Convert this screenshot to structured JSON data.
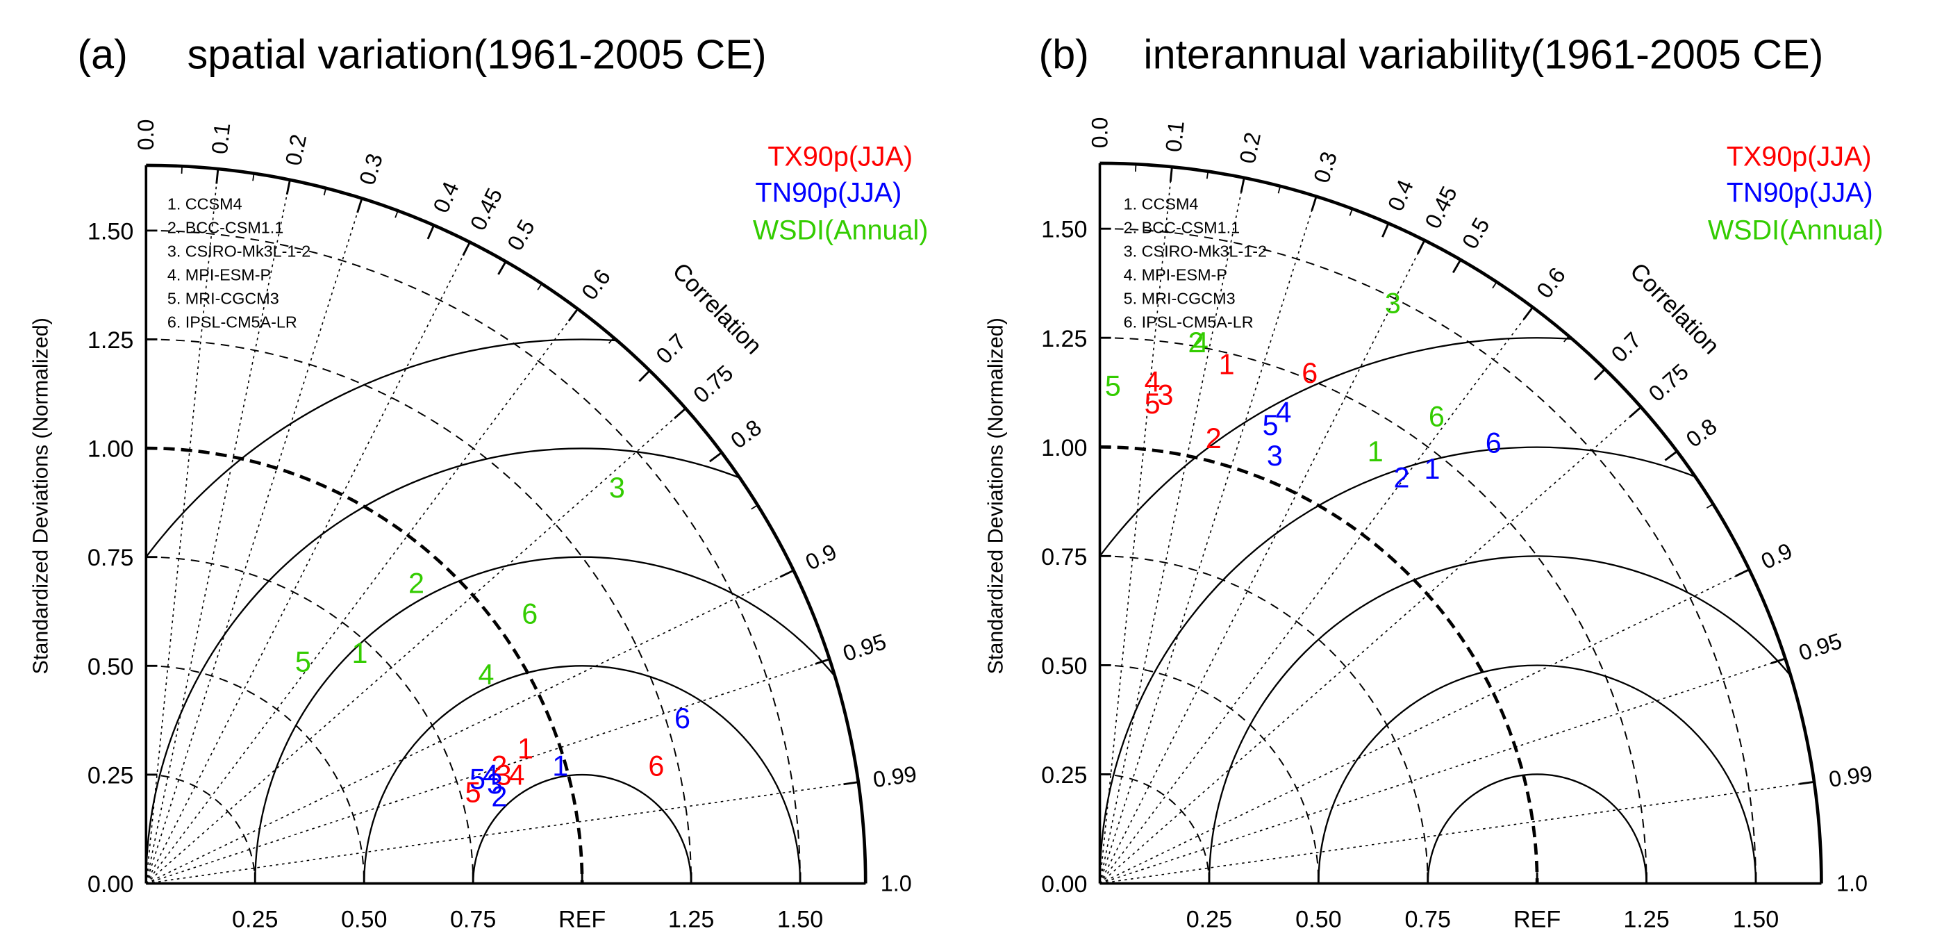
{
  "legend": {
    "models": [
      "1. CCSM4",
      "2. BCC-CSM1.1",
      "3. CSIRO-Mk3L-1-2",
      "4. MPI-ESM-P",
      "5. MRI-CGCM3",
      "6. IPSL-CM5A-LR"
    ],
    "indices": [
      {
        "name": "TX90p(JJA)",
        "color": "#ff0000"
      },
      {
        "name": "TN90p(JJA)",
        "color": "#0000ff"
      },
      {
        "name": "WSDI(Annual)",
        "color": "#33cc00"
      }
    ]
  },
  "chart_data": [
    {
      "type": "scatter",
      "panel_label": "(a)",
      "title": "spatial variation(1961-2005 CE)",
      "ylabel": "Standardized Deviations (Normalized)",
      "arc_label": "Correlation",
      "ref_label": "REF",
      "x_tick_labels": [
        "0.25",
        "0.50",
        "0.75",
        "REF",
        "1.25",
        "1.50"
      ],
      "y_tick_labels": [
        "0.00",
        "0.25",
        "0.50",
        "0.75",
        "1.00",
        "1.25",
        "1.50"
      ],
      "corr_ticks": [
        0.0,
        0.1,
        0.2,
        0.3,
        0.4,
        0.45,
        0.5,
        0.6,
        0.7,
        0.75,
        0.8,
        0.9,
        0.95,
        0.99,
        1.0
      ],
      "corr_tick_labels": [
        "0.0",
        "0.1",
        "0.2",
        "0.3",
        "0.4",
        "0.45",
        "0.5",
        "0.6",
        "0.7",
        "0.75",
        "0.8",
        "0.9",
        "0.95",
        "0.99",
        "1.0"
      ],
      "series": [
        {
          "name": "TX90p(JJA)",
          "points": [
            {
              "label": "1",
              "x": 0.87,
              "y": 0.31
            },
            {
              "label": "2",
              "x": 0.81,
              "y": 0.27
            },
            {
              "label": "3",
              "x": 0.82,
              "y": 0.25
            },
            {
              "label": "4",
              "x": 0.85,
              "y": 0.25
            },
            {
              "label": "5",
              "x": 0.75,
              "y": 0.21
            },
            {
              "label": "6",
              "x": 1.17,
              "y": 0.27
            }
          ]
        },
        {
          "name": "TN90p(JJA)",
          "points": [
            {
              "label": "1",
              "x": 0.95,
              "y": 0.27
            },
            {
              "label": "2",
              "x": 0.81,
              "y": 0.2
            },
            {
              "label": "3",
              "x": 0.8,
              "y": 0.23
            },
            {
              "label": "4",
              "x": 0.79,
              "y": 0.25
            },
            {
              "label": "5",
              "x": 0.76,
              "y": 0.24
            },
            {
              "label": "6",
              "x": 1.23,
              "y": 0.38
            }
          ]
        },
        {
          "name": "WSDI(Annual)",
          "points": [
            {
              "label": "1",
              "x": 0.49,
              "y": 0.53
            },
            {
              "label": "2",
              "x": 0.62,
              "y": 0.69
            },
            {
              "label": "3",
              "x": 1.08,
              "y": 0.91
            },
            {
              "label": "4",
              "x": 0.78,
              "y": 0.48
            },
            {
              "label": "5",
              "x": 0.36,
              "y": 0.51
            },
            {
              "label": "6",
              "x": 0.88,
              "y": 0.62
            }
          ]
        }
      ]
    },
    {
      "type": "scatter",
      "panel_label": "(b)",
      "title": "interannual variability(1961-2005 CE)",
      "ylabel": "Standardized Deviations (Normalized)",
      "arc_label": "Correlation",
      "ref_label": "REF",
      "x_tick_labels": [
        "0.25",
        "0.50",
        "0.75",
        "REF",
        "1.25",
        "1.50"
      ],
      "y_tick_labels": [
        "0.00",
        "0.25",
        "0.50",
        "0.75",
        "1.00",
        "1.25",
        "1.50"
      ],
      "corr_ticks": [
        0.0,
        0.1,
        0.2,
        0.3,
        0.4,
        0.45,
        0.5,
        0.6,
        0.7,
        0.75,
        0.8,
        0.9,
        0.95,
        0.99,
        1.0
      ],
      "corr_tick_labels": [
        "0.0",
        "0.1",
        "0.2",
        "0.3",
        "0.4",
        "0.45",
        "0.5",
        "0.6",
        "0.7",
        "0.75",
        "0.8",
        "0.9",
        "0.95",
        "0.99",
        "1.0"
      ],
      "series": [
        {
          "name": "TX90p(JJA)",
          "points": [
            {
              "label": "1",
              "x": 0.29,
              "y": 1.19
            },
            {
              "label": "2",
              "x": 0.26,
              "y": 1.02
            },
            {
              "label": "3",
              "x": 0.15,
              "y": 1.12
            },
            {
              "label": "4",
              "x": 0.12,
              "y": 1.15
            },
            {
              "label": "5",
              "x": 0.12,
              "y": 1.1
            },
            {
              "label": "6",
              "x": 0.48,
              "y": 1.17
            }
          ]
        },
        {
          "name": "TN90p(JJA)",
          "points": [
            {
              "label": "1",
              "x": 0.76,
              "y": 0.95
            },
            {
              "label": "2",
              "x": 0.69,
              "y": 0.93
            },
            {
              "label": "3",
              "x": 0.4,
              "y": 0.98
            },
            {
              "label": "4",
              "x": 0.42,
              "y": 1.08
            },
            {
              "label": "5",
              "x": 0.39,
              "y": 1.05
            },
            {
              "label": "6",
              "x": 0.9,
              "y": 1.01
            }
          ]
        },
        {
          "name": "WSDI(Annual)",
          "points": [
            {
              "label": "1",
              "x": 0.63,
              "y": 0.99
            },
            {
              "label": "2",
              "x": 0.22,
              "y": 1.24
            },
            {
              "label": "3",
              "x": 0.67,
              "y": 1.33
            },
            {
              "label": "4",
              "x": 0.23,
              "y": 1.24
            },
            {
              "label": "5",
              "x": 0.03,
              "y": 1.14
            },
            {
              "label": "6",
              "x": 0.77,
              "y": 1.07
            }
          ]
        }
      ]
    }
  ]
}
